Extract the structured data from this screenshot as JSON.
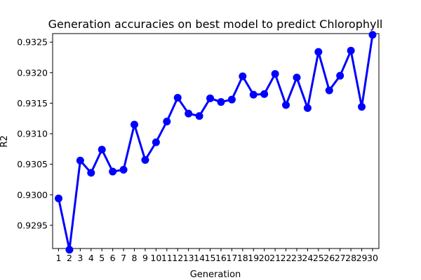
{
  "chart_data": {
    "type": "line",
    "title": "Generation accuracies on best model to predict Chlorophyll",
    "xlabel": "Generation",
    "ylabel": "R2",
    "categories": [
      "1",
      "2",
      "3",
      "4",
      "5",
      "6",
      "7",
      "8",
      "9",
      "10",
      "11",
      "12",
      "13",
      "14",
      "15",
      "16",
      "17",
      "18",
      "19",
      "20",
      "21",
      "22",
      "23",
      "24",
      "25",
      "26",
      "27",
      "28",
      "29",
      "30"
    ],
    "series": [
      {
        "color": "#0000ff",
        "values": [
          0.92994,
          0.9291,
          0.93056,
          0.93036,
          0.93074,
          0.93038,
          0.93041,
          0.93115,
          0.93057,
          0.93086,
          0.9312,
          0.93159,
          0.93133,
          0.93129,
          0.93158,
          0.93152,
          0.93156,
          0.93194,
          0.93164,
          0.93165,
          0.93198,
          0.93147,
          0.93192,
          0.93142,
          0.93234,
          0.93171,
          0.93195,
          0.93236,
          0.93144,
          0.93262
        ]
      }
    ],
    "ylim": [
      0.92912,
      0.93264
    ],
    "yticks": [
      "0.9295",
      "0.9300",
      "0.9305",
      "0.9310",
      "0.9315",
      "0.9320",
      "0.9325"
    ],
    "grid": false,
    "legend": "none"
  }
}
